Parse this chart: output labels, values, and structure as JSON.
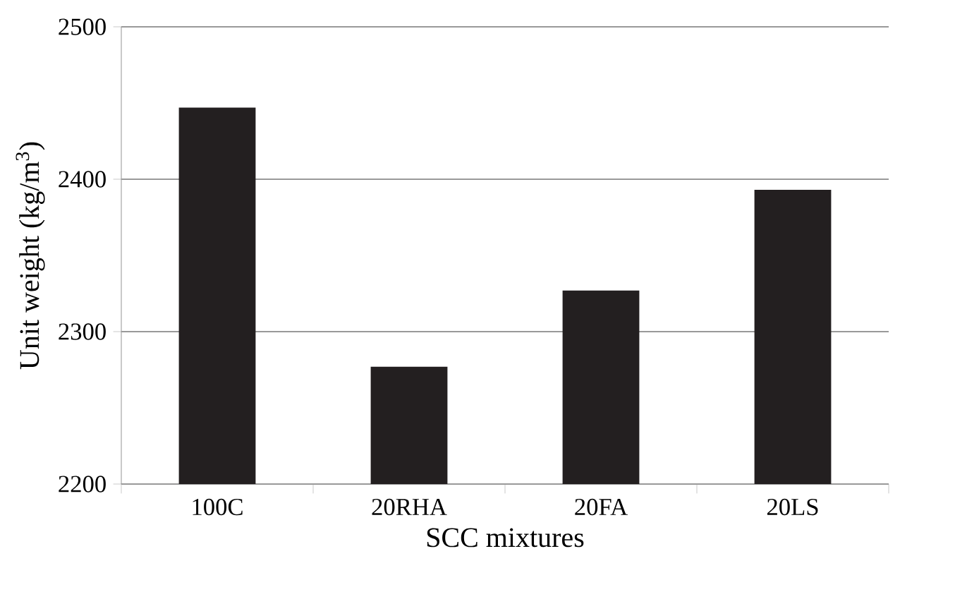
{
  "chart_data": {
    "type": "bar",
    "xlabel": "SCC mixtures",
    "ylabel": "Unit weight (kg/m$^{3}$)",
    "categories": [
      "100C",
      "20RHA",
      "20FA",
      "20LS"
    ],
    "values": [
      2447,
      2277,
      2327,
      2393
    ],
    "color": "#231f20",
    "ylim": [
      2200,
      2500
    ],
    "yticks": [
      2200,
      2300,
      2400,
      2500
    ],
    "grid": "y"
  }
}
